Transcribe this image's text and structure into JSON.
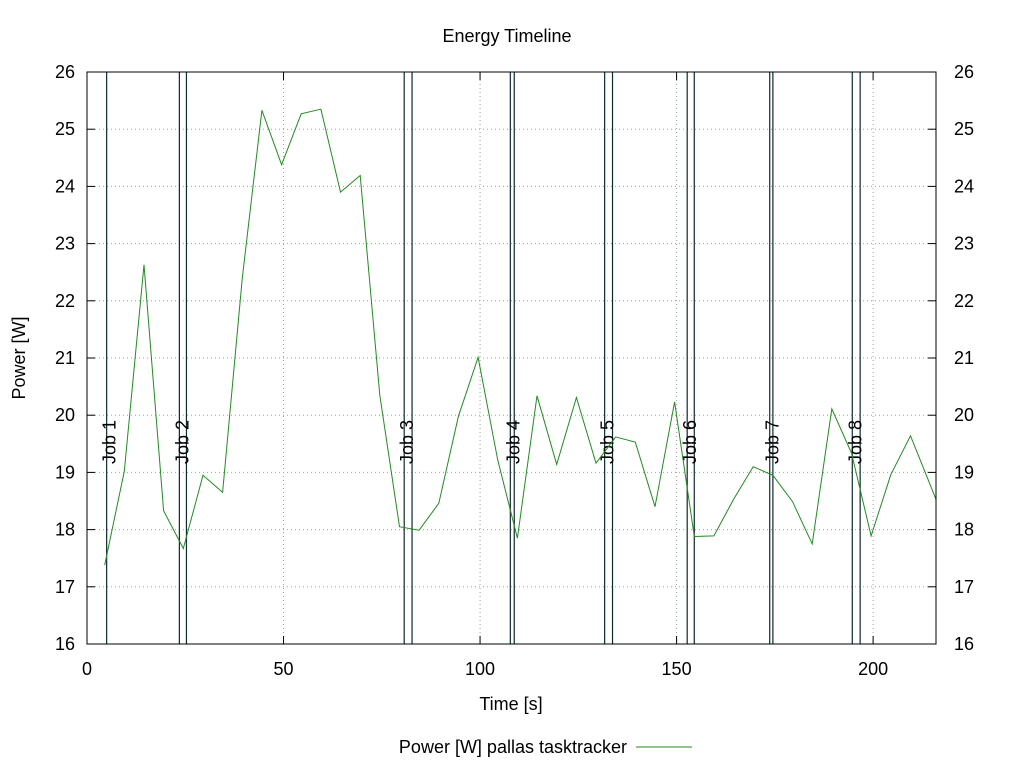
{
  "chart_data": {
    "type": "line",
    "title": "Energy Timeline",
    "xlabel": "Time [s]",
    "ylabel": "Power [W]",
    "xlim": [
      0,
      216
    ],
    "ylim": [
      16,
      26
    ],
    "x_ticks": [
      0,
      50,
      100,
      150,
      200
    ],
    "y_ticks": [
      16,
      17,
      18,
      19,
      20,
      21,
      22,
      23,
      24,
      25,
      26
    ],
    "y2_ticks": [
      16,
      17,
      18,
      19,
      20,
      21,
      22,
      23,
      24,
      25,
      26
    ],
    "grid": true,
    "legend_position": "bottom",
    "series": [
      {
        "name": "Power [W] pallas tasktracker",
        "color": "#228b22",
        "x": [
          4.5,
          9.5,
          14.5,
          19.5,
          24.5,
          29.5,
          34.5,
          39.5,
          44.5,
          49.5,
          54.5,
          59.5,
          64.5,
          69.5,
          74.5,
          79.5,
          84.5,
          89.5,
          94.5,
          99.5,
          104.5,
          109.5,
          114.5,
          119.5,
          124.5,
          129.5,
          134.5,
          139.5,
          144.5,
          149.5,
          154.5,
          159.5,
          164.5,
          169.5,
          174.5,
          179.5,
          184.5,
          189.5,
          194.5,
          199.5,
          204.5,
          209.5,
          216
        ],
        "y": [
          17.38,
          19.02,
          22.63,
          18.33,
          17.67,
          18.95,
          18.65,
          22.4,
          25.33,
          24.38,
          25.27,
          25.35,
          23.9,
          24.19,
          20.35,
          18.05,
          17.99,
          18.46,
          19.98,
          21.01,
          19.22,
          17.85,
          20.34,
          19.14,
          20.31,
          19.16,
          19.62,
          19.53,
          18.4,
          20.23,
          17.88,
          17.89,
          18.53,
          19.1,
          18.95,
          18.49,
          17.75,
          20.11,
          19.34,
          17.89,
          18.96,
          19.64,
          18.53
        ]
      }
    ],
    "markers": [
      {
        "label": "Job 1",
        "start": 5.0,
        "end": 5.0
      },
      {
        "label": "Job 2",
        "start": 23.5,
        "end": 25.3
      },
      {
        "label": "Job 3",
        "start": 80.7,
        "end": 82.7
      },
      {
        "label": "Job 4",
        "start": 107.7,
        "end": 108.7
      },
      {
        "label": "Job 5",
        "start": 131.7,
        "end": 133.7
      },
      {
        "label": "Job 6",
        "start": 152.7,
        "end": 154.5
      },
      {
        "label": "Job 7",
        "start": 173.7,
        "end": 174.5
      },
      {
        "label": "Job 8",
        "start": 194.7,
        "end": 196.7
      }
    ]
  }
}
